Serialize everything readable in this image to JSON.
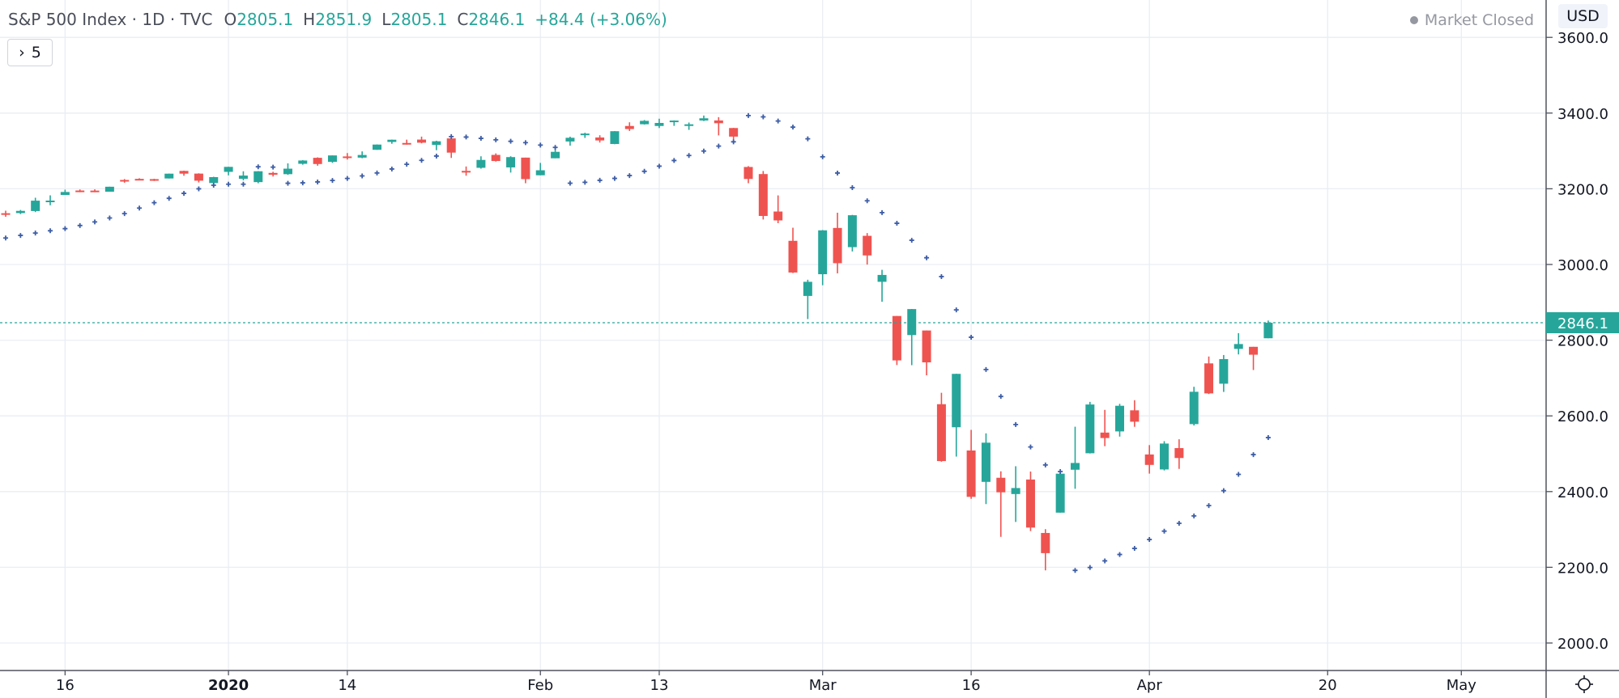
{
  "header": {
    "title": "S&P 500 Index · 1D · TVC",
    "open_label": "O",
    "open": "2805.1",
    "high_label": "H",
    "high": "2851.9",
    "low_label": "L",
    "low": "2805.1",
    "close_label": "C",
    "close": "2846.1",
    "change": "+84.4 (+3.06%)",
    "indicators_button": "5",
    "market_status": "Market Closed",
    "currency": "USD"
  },
  "colors": {
    "up": "#26a69a",
    "down": "#ef5350",
    "sar": "#3d5da6",
    "grid": "#e9eef3",
    "axis": "#50535e"
  },
  "chart_data": {
    "type": "candlestick",
    "symbol": "S&P 500 Index",
    "interval": "1D",
    "ylim": [
      1950,
      3700
    ],
    "y_ticks": [
      "2000.0",
      "2200.0",
      "2400.0",
      "2600.0",
      "2800.0",
      "3000.0",
      "3200.0",
      "3400.0",
      "3600.0"
    ],
    "x_ticks": [
      {
        "label": "16",
        "date": "2019-12-16"
      },
      {
        "label": "2020",
        "date": "2020-01-02"
      },
      {
        "label": "14",
        "date": "2020-01-14"
      },
      {
        "label": "Feb",
        "date": "2020-02-03"
      },
      {
        "label": "13",
        "date": "2020-02-13"
      },
      {
        "label": "Mar",
        "date": "2020-03-02"
      },
      {
        "label": "16",
        "date": "2020-03-16"
      },
      {
        "label": "Apr",
        "date": "2020-04-01"
      },
      {
        "label": "20",
        "date": "2020-04-20"
      },
      {
        "label": "May",
        "date": "2020-05-01"
      }
    ],
    "last_price": "2846.1",
    "grid": true,
    "indicator": "Parabolic SAR",
    "columns": [
      "date",
      "open",
      "high",
      "low",
      "close"
    ],
    "candles": [
      [
        "2019-12-10",
        3135.4,
        3142.1,
        3126.1,
        3132.5
      ],
      [
        "2019-12-11",
        3135.8,
        3144.0,
        3133.2,
        3141.6
      ],
      [
        "2019-12-12",
        3141.2,
        3176.3,
        3138.5,
        3168.6
      ],
      [
        "2019-12-13",
        3166.7,
        3182.7,
        3156.5,
        3168.8
      ],
      [
        "2019-12-16",
        3183.6,
        3197.7,
        3183.6,
        3191.5
      ],
      [
        "2019-12-17",
        3195.4,
        3198.2,
        3191.0,
        3192.5
      ],
      [
        "2019-12-18",
        3195.2,
        3198.5,
        3191.1,
        3191.1
      ],
      [
        "2019-12-19",
        3192.3,
        3205.5,
        3192.3,
        3205.4
      ],
      [
        "2019-12-20",
        3223.3,
        3225.7,
        3216.0,
        3221.2
      ],
      [
        "2019-12-23",
        3226.1,
        3227.8,
        3222.3,
        3224.0
      ],
      [
        "2019-12-24",
        3225.5,
        3226.4,
        3220.5,
        3223.4
      ],
      [
        "2019-12-26",
        3227.2,
        3240.1,
        3227.2,
        3239.9
      ],
      [
        "2019-12-27",
        3247.2,
        3247.9,
        3234.4,
        3240.0
      ],
      [
        "2019-12-30",
        3240.1,
        3240.9,
        3216.6,
        3221.3
      ],
      [
        "2019-12-31",
        3215.2,
        3231.7,
        3212.0,
        3230.8
      ],
      [
        "2020-01-02",
        3244.7,
        3258.1,
        3235.5,
        3257.9
      ],
      [
        "2020-01-03",
        3226.4,
        3246.2,
        3222.3,
        3234.9
      ],
      [
        "2020-01-06",
        3217.6,
        3246.8,
        3214.6,
        3246.3
      ],
      [
        "2020-01-07",
        3241.9,
        3244.9,
        3232.4,
        3237.2
      ],
      [
        "2020-01-08",
        3238.6,
        3267.1,
        3236.7,
        3253.1
      ],
      [
        "2020-01-09",
        3266.0,
        3275.6,
        3263.7,
        3274.7
      ],
      [
        "2020-01-10",
        3281.8,
        3283.0,
        3260.9,
        3265.4
      ],
      [
        "2020-01-13",
        3271.1,
        3288.1,
        3268.4,
        3288.1
      ],
      [
        "2020-01-14",
        3285.4,
        3294.3,
        3277.2,
        3283.2
      ],
      [
        "2020-01-15",
        3282.3,
        3298.7,
        3280.7,
        3289.3
      ],
      [
        "2020-01-16",
        3303.0,
        3317.1,
        3302.8,
        3316.8
      ],
      [
        "2020-01-17",
        3323.7,
        3329.9,
        3318.9,
        3329.6
      ],
      [
        "2020-01-21",
        3321.0,
        3329.8,
        3316.6,
        3320.8
      ],
      [
        "2020-01-22",
        3330.0,
        3337.8,
        3320.0,
        3321.8
      ],
      [
        "2020-01-23",
        3315.8,
        3326.9,
        3301.9,
        3325.5
      ],
      [
        "2020-01-24",
        3333.1,
        3333.2,
        3281.5,
        3295.5
      ],
      [
        "2020-01-27",
        3247.2,
        3258.9,
        3234.5,
        3243.6
      ],
      [
        "2020-01-28",
        3255.4,
        3285.8,
        3253.2,
        3276.2
      ],
      [
        "2020-01-29",
        3289.5,
        3293.5,
        3271.9,
        3273.4
      ],
      [
        "2020-01-30",
        3256.5,
        3285.9,
        3242.8,
        3283.7
      ],
      [
        "2020-01-31",
        3282.3,
        3282.3,
        3214.7,
        3225.5
      ],
      [
        "2020-02-03",
        3235.7,
        3268.4,
        3235.7,
        3248.9
      ],
      [
        "2020-02-04",
        3280.6,
        3306.9,
        3280.6,
        3297.6
      ],
      [
        "2020-02-05",
        3324.9,
        3337.6,
        3313.8,
        3334.7
      ],
      [
        "2020-02-06",
        3344.9,
        3348.0,
        3334.4,
        3345.8
      ],
      [
        "2020-02-07",
        3335.5,
        3341.4,
        3322.1,
        3327.7
      ],
      [
        "2020-02-10",
        3318.3,
        3352.3,
        3317.8,
        3352.1
      ],
      [
        "2020-02-11",
        3365.9,
        3375.6,
        3352.7,
        3357.8
      ],
      [
        "2020-02-12",
        3370.5,
        3381.5,
        3369.7,
        3379.5
      ],
      [
        "2020-02-13",
        3365.9,
        3385.1,
        3360.5,
        3373.9
      ],
      [
        "2020-02-14",
        3378.1,
        3380.7,
        3366.2,
        3380.2
      ],
      [
        "2020-02-18",
        3369.0,
        3375.0,
        3355.6,
        3370.3
      ],
      [
        "2020-02-19",
        3380.4,
        3393.5,
        3378.8,
        3386.2
      ],
      [
        "2020-02-20",
        3380.5,
        3389.2,
        3341.0,
        3373.2
      ],
      [
        "2020-02-21",
        3360.5,
        3360.8,
        3328.5,
        3337.8
      ],
      [
        "2020-02-24",
        3257.6,
        3259.8,
        3214.7,
        3225.9
      ],
      [
        "2020-02-25",
        3238.9,
        3247.0,
        3118.8,
        3128.2
      ],
      [
        "2020-02-26",
        3139.9,
        3182.5,
        3109.0,
        3116.4
      ],
      [
        "2020-02-27",
        3062.5,
        3097.1,
        2977.4,
        2978.8
      ],
      [
        "2020-02-28",
        2916.9,
        2959.7,
        2855.8,
        2954.2
      ],
      [
        "2020-03-02",
        2974.3,
        3091.0,
        2945.2,
        3090.2
      ],
      [
        "2020-03-03",
        3096.5,
        3136.7,
        2976.6,
        3003.4
      ],
      [
        "2020-03-04",
        3045.8,
        3131.0,
        3034.4,
        3130.1
      ],
      [
        "2020-03-05",
        3075.7,
        3083.0,
        2999.8,
        3023.9
      ],
      [
        "2020-03-06",
        2954.2,
        2985.9,
        2901.5,
        2972.4
      ],
      [
        "2020-03-09",
        2863.9,
        2863.9,
        2734.4,
        2746.6
      ],
      [
        "2020-03-10",
        2813.5,
        2882.6,
        2734.0,
        2882.2
      ],
      [
        "2020-03-11",
        2825.6,
        2825.6,
        2707.2,
        2741.4
      ],
      [
        "2020-03-12",
        2630.9,
        2661.0,
        2478.9,
        2480.6
      ],
      [
        "2020-03-13",
        2570.0,
        2711.3,
        2492.4,
        2711.0
      ],
      [
        "2020-03-16",
        2508.6,
        2563.0,
        2380.9,
        2386.1
      ],
      [
        "2020-03-17",
        2425.7,
        2553.9,
        2367.0,
        2529.2
      ],
      [
        "2020-03-18",
        2436.5,
        2453.6,
        2280.5,
        2398.1
      ],
      [
        "2020-03-19",
        2393.5,
        2467.0,
        2319.8,
        2409.4
      ],
      [
        "2020-03-20",
        2431.9,
        2453.0,
        2295.6,
        2304.9
      ],
      [
        "2020-03-23",
        2290.7,
        2300.7,
        2191.9,
        2237.4
      ],
      [
        "2020-03-24",
        2344.4,
        2449.7,
        2344.4,
        2447.3
      ],
      [
        "2020-03-25",
        2457.8,
        2571.4,
        2407.5,
        2475.6
      ],
      [
        "2020-03-26",
        2501.3,
        2637.0,
        2500.7,
        2630.1
      ],
      [
        "2020-03-27",
        2555.9,
        2615.9,
        2520.0,
        2541.5
      ],
      [
        "2020-03-30",
        2559.0,
        2631.8,
        2545.3,
        2626.7
      ],
      [
        "2020-03-31",
        2614.7,
        2641.4,
        2571.2,
        2584.6
      ],
      [
        "2020-04-01",
        2498.1,
        2522.8,
        2447.5,
        2470.5
      ],
      [
        "2020-04-02",
        2458.5,
        2533.2,
        2455.8,
        2526.9
      ],
      [
        "2020-04-03",
        2514.9,
        2538.2,
        2460.0,
        2488.7
      ],
      [
        "2020-04-06",
        2578.3,
        2676.9,
        2574.6,
        2663.7
      ],
      [
        "2020-04-07",
        2738.7,
        2756.9,
        2657.7,
        2659.4
      ],
      [
        "2020-04-08",
        2685.0,
        2760.8,
        2663.3,
        2750.0
      ],
      [
        "2020-04-09",
        2777.0,
        2818.6,
        2762.4,
        2789.8
      ],
      [
        "2020-04-13",
        2782.5,
        2782.5,
        2721.2,
        2761.6
      ],
      [
        "2020-04-14",
        2805.1,
        2851.9,
        2805.1,
        2846.1
      ]
    ]
  }
}
